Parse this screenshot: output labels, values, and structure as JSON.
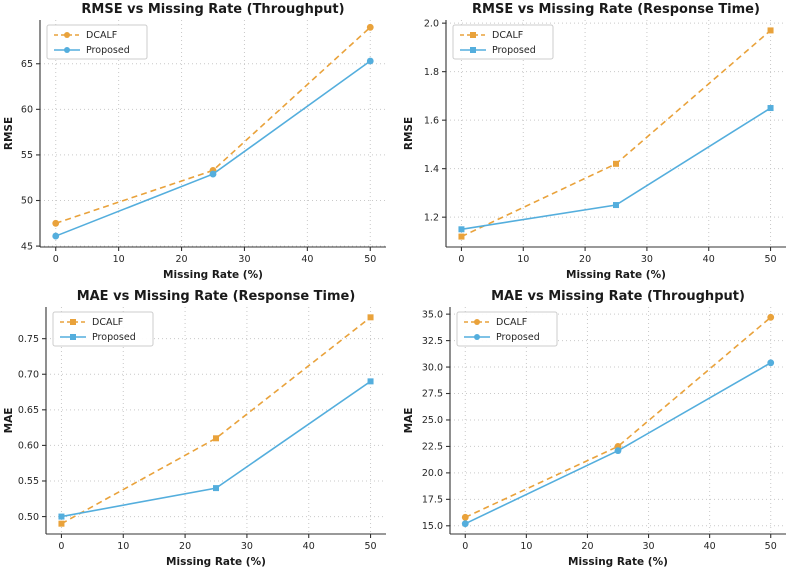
{
  "figure": {
    "background": "#ffffff",
    "layout": "2x2-grid"
  },
  "colors": {
    "dcalf": "#E9A23B",
    "proposed": "#54AEDD",
    "grid": "#c9c9c9",
    "spine": "#333333",
    "text": "#262626",
    "legend_border": "#cccccc"
  },
  "legend": {
    "position": "upper left",
    "entries": [
      "DCALF",
      "Proposed"
    ]
  },
  "chart_data": [
    {
      "type": "line",
      "title": "RMSE vs Missing Rate (Throughput)",
      "xlabel": "Missing Rate (%)",
      "ylabel": "RMSE",
      "x": [
        0,
        25,
        50
      ],
      "series": [
        {
          "name": "DCALF",
          "values": [
            47.5,
            53.3,
            69.0
          ],
          "color_key": "dcalf",
          "dash": true
        },
        {
          "name": "Proposed",
          "values": [
            46.1,
            52.9,
            65.3
          ],
          "color_key": "proposed",
          "dash": false
        }
      ],
      "marker": "circle",
      "xlim": [
        -2.5,
        52.5
      ],
      "ylim": [
        44.9,
        69.8
      ],
      "xticks": [
        0,
        10,
        20,
        30,
        40,
        50
      ],
      "xtick_labels": [
        "0",
        "10",
        "20",
        "30",
        "40",
        "50"
      ],
      "yticks": [
        45,
        50,
        55,
        60,
        65
      ],
      "ytick_labels": [
        "45",
        "50",
        "55",
        "60",
        "65"
      ],
      "grid": true,
      "legend_position": "upper left",
      "margin_left": 40
    },
    {
      "type": "line",
      "title": "RMSE vs Missing Rate (Response Time)",
      "xlabel": "Missing Rate (%)",
      "ylabel": "RMSE",
      "x": [
        0,
        25,
        50
      ],
      "series": [
        {
          "name": "DCALF",
          "values": [
            1.12,
            1.42,
            1.97
          ],
          "color_key": "dcalf",
          "dash": true
        },
        {
          "name": "Proposed",
          "values": [
            1.15,
            1.25,
            1.65
          ],
          "color_key": "proposed",
          "dash": false
        }
      ],
      "marker": "square",
      "xlim": [
        -2.5,
        52.5
      ],
      "ylim": [
        1.077,
        2.013
      ],
      "xticks": [
        0,
        10,
        20,
        30,
        40,
        50
      ],
      "xtick_labels": [
        "0",
        "10",
        "20",
        "30",
        "40",
        "50"
      ],
      "yticks": [
        1.2,
        1.4,
        1.6,
        1.8,
        2.0
      ],
      "ytick_labels": [
        "1.2",
        "1.4",
        "1.6",
        "1.8",
        "2.0"
      ],
      "grid": true,
      "legend_position": "upper left",
      "margin_left": 46
    },
    {
      "type": "line",
      "title": "MAE vs Missing Rate (Response Time)",
      "xlabel": "Missing Rate (%)",
      "ylabel": "MAE",
      "x": [
        0,
        25,
        50
      ],
      "series": [
        {
          "name": "DCALF",
          "values": [
            0.49,
            0.61,
            0.78
          ],
          "color_key": "dcalf",
          "dash": true
        },
        {
          "name": "Proposed",
          "values": [
            0.5,
            0.54,
            0.69
          ],
          "color_key": "proposed",
          "dash": false
        }
      ],
      "marker": "square",
      "xlim": [
        -2.5,
        52.5
      ],
      "ylim": [
        0.4755,
        0.7945
      ],
      "xticks": [
        0,
        10,
        20,
        30,
        40,
        50
      ],
      "xtick_labels": [
        "0",
        "10",
        "20",
        "30",
        "40",
        "50"
      ],
      "yticks": [
        0.5,
        0.55,
        0.6,
        0.65,
        0.7,
        0.75
      ],
      "ytick_labels": [
        "0.50",
        "0.55",
        "0.60",
        "0.65",
        "0.70",
        "0.75"
      ],
      "grid": true,
      "legend_position": "upper left",
      "margin_left": 46
    },
    {
      "type": "line",
      "title": "MAE vs Missing Rate (Throughput)",
      "xlabel": "Missing Rate (%)",
      "ylabel": "MAE",
      "x": [
        0,
        25,
        50
      ],
      "series": [
        {
          "name": "DCALF",
          "values": [
            15.8,
            22.5,
            34.7
          ],
          "color_key": "dcalf",
          "dash": true
        },
        {
          "name": "Proposed",
          "values": [
            15.2,
            22.1,
            30.4
          ],
          "color_key": "proposed",
          "dash": false
        }
      ],
      "marker": "circle",
      "xlim": [
        -2.5,
        52.5
      ],
      "ylim": [
        14.225,
        35.675
      ],
      "xticks": [
        0,
        10,
        20,
        30,
        40,
        50
      ],
      "xtick_labels": [
        "0",
        "10",
        "20",
        "30",
        "40",
        "50"
      ],
      "yticks": [
        15.0,
        17.5,
        20.0,
        22.5,
        25.0,
        27.5,
        30.0,
        32.5,
        35.0
      ],
      "ytick_labels": [
        "15.0",
        "17.5",
        "20.0",
        "22.5",
        "25.0",
        "27.5",
        "30.0",
        "32.5",
        "35.0"
      ],
      "grid": true,
      "legend_position": "upper left",
      "margin_left": 50
    }
  ]
}
